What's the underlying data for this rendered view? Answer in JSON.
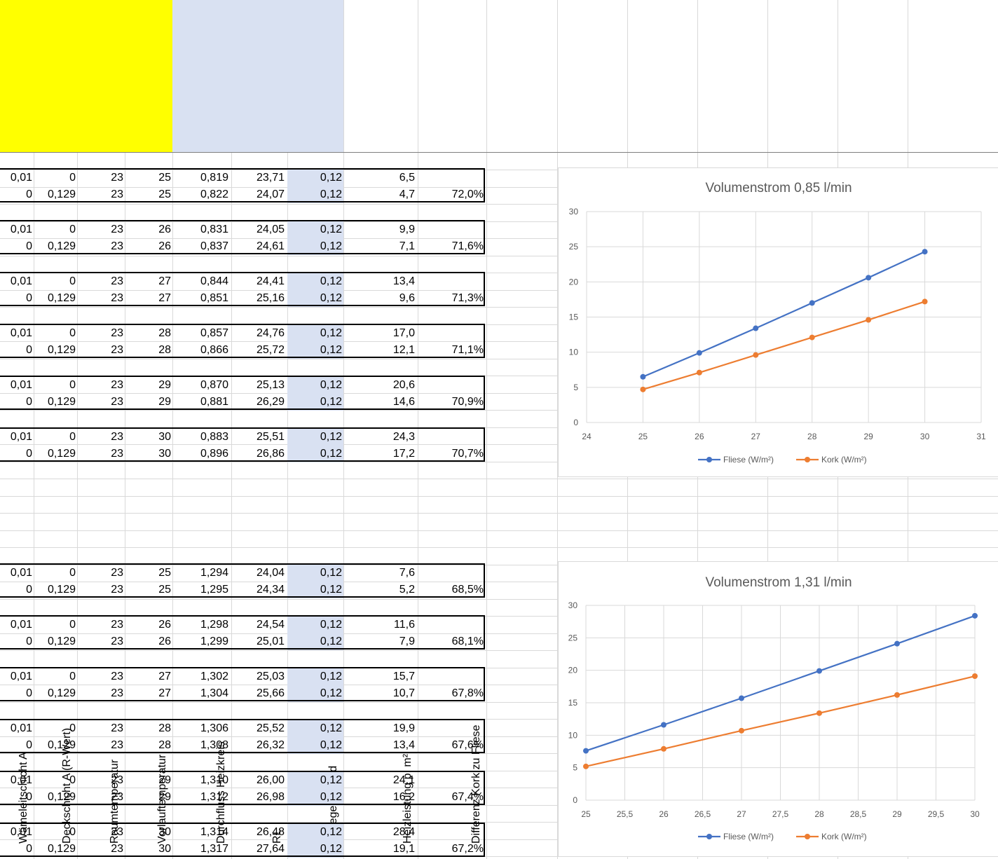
{
  "headers": [
    {
      "label": "Wämeleitschicht A",
      "fill": "#ffff00"
    },
    {
      "label": "Deckschicht A (R-Wert)",
      "fill": "#ffff00"
    },
    {
      "label": "Raumtemperatur",
      "fill": "#ffff00"
    },
    {
      "label": "Vorlauftemperatur",
      "fill": "#ffff00"
    },
    {
      "label": "Durchfluss Heizkreis",
      "fill": "#d9e1f2"
    },
    {
      "label": "RL",
      "fill": "#d9e1f2"
    },
    {
      "label": "Verlegeabstand",
      "fill": "#d9e1f2"
    },
    {
      "label": "Heizleistung p. m²",
      "fill": ""
    },
    {
      "label": "Differenz Kork zu Fliese",
      "fill": ""
    }
  ],
  "groups": [
    {
      "rows": [
        [
          "0,01",
          "0",
          "23",
          "25",
          "0,819",
          "23,71",
          "0,12",
          "6,5",
          ""
        ],
        [
          "0",
          "0,129",
          "23",
          "25",
          "0,822",
          "24,07",
          "0,12",
          "4,7",
          "72,0%"
        ]
      ]
    },
    {
      "rows": [
        [
          "0,01",
          "0",
          "23",
          "26",
          "0,831",
          "24,05",
          "0,12",
          "9,9",
          ""
        ],
        [
          "0",
          "0,129",
          "23",
          "26",
          "0,837",
          "24,61",
          "0,12",
          "7,1",
          "71,6%"
        ]
      ]
    },
    {
      "rows": [
        [
          "0,01",
          "0",
          "23",
          "27",
          "0,844",
          "24,41",
          "0,12",
          "13,4",
          ""
        ],
        [
          "0",
          "0,129",
          "23",
          "27",
          "0,851",
          "25,16",
          "0,12",
          "9,6",
          "71,3%"
        ]
      ]
    },
    {
      "rows": [
        [
          "0,01",
          "0",
          "23",
          "28",
          "0,857",
          "24,76",
          "0,12",
          "17,0",
          ""
        ],
        [
          "0",
          "0,129",
          "23",
          "28",
          "0,866",
          "25,72",
          "0,12",
          "12,1",
          "71,1%"
        ]
      ]
    },
    {
      "rows": [
        [
          "0,01",
          "0",
          "23",
          "29",
          "0,870",
          "25,13",
          "0,12",
          "20,6",
          ""
        ],
        [
          "0",
          "0,129",
          "23",
          "29",
          "0,881",
          "26,29",
          "0,12",
          "14,6",
          "70,9%"
        ]
      ]
    },
    {
      "rows": [
        [
          "0,01",
          "0",
          "23",
          "30",
          "0,883",
          "25,51",
          "0,12",
          "24,3",
          ""
        ],
        [
          "0",
          "0,129",
          "23",
          "30",
          "0,896",
          "26,86",
          "0,12",
          "17,2",
          "70,7%"
        ]
      ]
    },
    {
      "rows": [
        [
          "0,01",
          "0",
          "23",
          "25",
          "1,294",
          "24,04",
          "0,12",
          "7,6",
          ""
        ],
        [
          "0",
          "0,129",
          "23",
          "25",
          "1,295",
          "24,34",
          "0,12",
          "5,2",
          "68,5%"
        ]
      ]
    },
    {
      "rows": [
        [
          "0,01",
          "0",
          "23",
          "26",
          "1,298",
          "24,54",
          "0,12",
          "11,6",
          ""
        ],
        [
          "0",
          "0,129",
          "23",
          "26",
          "1,299",
          "25,01",
          "0,12",
          "7,9",
          "68,1%"
        ]
      ]
    },
    {
      "rows": [
        [
          "0,01",
          "0",
          "23",
          "27",
          "1,302",
          "25,03",
          "0,12",
          "15,7",
          ""
        ],
        [
          "0",
          "0,129",
          "23",
          "27",
          "1,304",
          "25,66",
          "0,12",
          "10,7",
          "67,8%"
        ]
      ]
    },
    {
      "rows": [
        [
          "0,01",
          "0",
          "23",
          "28",
          "1,306",
          "25,52",
          "0,12",
          "19,9",
          ""
        ],
        [
          "0",
          "0,129",
          "23",
          "28",
          "1,308",
          "26,32",
          "0,12",
          "13,4",
          "67,6%"
        ]
      ]
    },
    {
      "rows": [
        [
          "0,01",
          "0",
          "23",
          "29",
          "1,310",
          "26,00",
          "0,12",
          "24,1",
          ""
        ],
        [
          "0",
          "0,129",
          "23",
          "29",
          "1,312",
          "26,98",
          "0,12",
          "16,2",
          "67,4%"
        ]
      ]
    },
    {
      "rows": [
        [
          "0,01",
          "0",
          "23",
          "30",
          "1,314",
          "26,48",
          "0,12",
          "28,4",
          ""
        ],
        [
          "0",
          "0,129",
          "23",
          "30",
          "1,317",
          "27,64",
          "0,12",
          "19,1",
          "67,2%"
        ]
      ]
    }
  ],
  "chart_data": [
    {
      "type": "line",
      "title": "Volumenstrom 0,85 l/min",
      "xlim": [
        24,
        31
      ],
      "x_ticks": [
        "24",
        "25",
        "26",
        "27",
        "28",
        "29",
        "30",
        "31"
      ],
      "ylim": [
        0,
        30
      ],
      "y_ticks": [
        "0",
        "5",
        "10",
        "15",
        "20",
        "25",
        "30"
      ],
      "x": [
        25,
        26,
        27,
        28,
        29,
        30
      ],
      "series": [
        {
          "name": "Fliese (W/m²)",
          "color": "#4472c4",
          "values": [
            6.5,
            9.9,
            13.4,
            17.0,
            20.6,
            24.3
          ]
        },
        {
          "name": "Kork (W/m²)",
          "color": "#ed7d31",
          "values": [
            4.7,
            7.1,
            9.6,
            12.1,
            14.6,
            17.2
          ]
        }
      ],
      "legend": "bottom",
      "grid": true
    },
    {
      "type": "line",
      "title": "Volumenstrom 1,31 l/min",
      "xlim": [
        25,
        30
      ],
      "x_ticks": [
        "25",
        "25,5",
        "26",
        "26,5",
        "27",
        "27,5",
        "28",
        "28,5",
        "29",
        "29,5",
        "30"
      ],
      "ylim": [
        0,
        30
      ],
      "y_ticks": [
        "0",
        "5",
        "10",
        "15",
        "20",
        "25",
        "30"
      ],
      "x": [
        25,
        26,
        27,
        28,
        29,
        30
      ],
      "series": [
        {
          "name": "Fliese (W/m²)",
          "color": "#4472c4",
          "values": [
            7.6,
            11.6,
            15.7,
            19.9,
            24.1,
            28.4
          ]
        },
        {
          "name": "Kork (W/m²)",
          "color": "#ed7d31",
          "values": [
            5.2,
            7.9,
            10.7,
            13.4,
            16.2,
            19.1
          ]
        }
      ],
      "legend": "bottom",
      "grid": true
    }
  ]
}
